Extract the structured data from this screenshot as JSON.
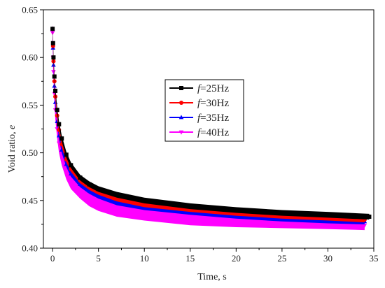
{
  "chart_data": {
    "type": "line",
    "xlabel": "Time, s",
    "ylabel_prefix": "Void ratio, ",
    "ylabel_var": "e",
    "xlim": [
      -1,
      35
    ],
    "ylim": [
      0.4,
      0.65
    ],
    "x_ticks": [
      0,
      5,
      10,
      15,
      20,
      25,
      30,
      35
    ],
    "y_ticks": [
      0.4,
      0.45,
      0.5,
      0.55,
      0.6,
      0.65
    ],
    "x_tick_labels": [
      "0",
      "5",
      "10",
      "15",
      "20",
      "25",
      "30",
      "35"
    ],
    "y_tick_labels": [
      "0.40",
      "0.45",
      "0.50",
      "0.55",
      "0.60",
      "0.65"
    ],
    "grid": false,
    "legend_position": "center",
    "series": [
      {
        "name": "f=25Hz",
        "name_var": "f",
        "name_rest": "=25Hz",
        "color": "#000000",
        "marker": "square",
        "x": [
          0,
          0.05,
          0.1,
          0.2,
          0.3,
          0.5,
          0.7,
          1.0,
          1.5,
          2.0,
          3.0,
          4.0,
          5.0,
          7.0,
          10.0,
          15.0,
          20.0,
          25.0,
          30.0,
          34.5
        ],
        "y": [
          0.63,
          0.615,
          0.6,
          0.58,
          0.565,
          0.545,
          0.53,
          0.515,
          0.498,
          0.487,
          0.474,
          0.467,
          0.462,
          0.456,
          0.45,
          0.444,
          0.44,
          0.437,
          0.435,
          0.433
        ],
        "band": [
          0.003,
          0.003,
          0.003,
          0.003,
          0.003,
          0.003,
          0.003,
          0.003,
          0.003,
          0.003,
          0.003,
          0.003,
          0.003,
          0.003,
          0.003,
          0.003,
          0.003,
          0.003,
          0.003,
          0.003
        ]
      },
      {
        "name": "f=30Hz",
        "name_var": "f",
        "name_rest": "=30Hz",
        "color": "#ff0000",
        "marker": "circle",
        "x": [
          0,
          0.05,
          0.1,
          0.2,
          0.3,
          0.5,
          0.7,
          1.0,
          1.5,
          2.0,
          3.0,
          4.0,
          5.0,
          7.0,
          10.0,
          15.0,
          20.0,
          25.0,
          30.0,
          34.0
        ],
        "y": [
          0.63,
          0.612,
          0.596,
          0.575,
          0.559,
          0.539,
          0.524,
          0.509,
          0.493,
          0.483,
          0.471,
          0.464,
          0.459,
          0.452,
          0.446,
          0.441,
          0.437,
          0.434,
          0.432,
          0.43
        ],
        "band": [
          0.003,
          0.003,
          0.003,
          0.003,
          0.003,
          0.003,
          0.003,
          0.003,
          0.003,
          0.003,
          0.003,
          0.003,
          0.003,
          0.003,
          0.003,
          0.003,
          0.003,
          0.003,
          0.003,
          0.003
        ]
      },
      {
        "name": "f=35Hz",
        "name_var": "f",
        "name_rest": "=35Hz",
        "color": "#0000ff",
        "marker": "triangle-up",
        "x": [
          0,
          0.05,
          0.1,
          0.2,
          0.3,
          0.5,
          0.7,
          1.0,
          1.5,
          2.0,
          3.0,
          4.0,
          5.0,
          7.0,
          10.0,
          15.0,
          20.0,
          25.0,
          30.0,
          34.0
        ],
        "y": [
          0.63,
          0.61,
          0.592,
          0.57,
          0.553,
          0.533,
          0.518,
          0.503,
          0.488,
          0.478,
          0.467,
          0.46,
          0.455,
          0.448,
          0.443,
          0.438,
          0.434,
          0.431,
          0.429,
          0.428
        ],
        "band": [
          0.003,
          0.003,
          0.003,
          0.003,
          0.003,
          0.003,
          0.003,
          0.003,
          0.003,
          0.003,
          0.003,
          0.003,
          0.003,
          0.003,
          0.003,
          0.003,
          0.003,
          0.003,
          0.003,
          0.003
        ]
      },
      {
        "name": "f=40Hz",
        "name_var": "f",
        "name_rest": "=40Hz",
        "color": "#ff00ff",
        "marker": "triangle-down",
        "x": [
          0,
          0.05,
          0.1,
          0.2,
          0.3,
          0.5,
          0.7,
          1.0,
          1.5,
          2.0,
          3.0,
          4.0,
          5.0,
          7.0,
          10.0,
          15.0,
          20.0,
          25.0,
          30.0,
          34.0
        ],
        "y": [
          0.626,
          0.6,
          0.585,
          0.562,
          0.545,
          0.525,
          0.51,
          0.496,
          0.481,
          0.471,
          0.46,
          0.452,
          0.447,
          0.441,
          0.436,
          0.431,
          0.428,
          0.426,
          0.425,
          0.424
        ],
        "band": [
          0.01,
          0.01,
          0.01,
          0.01,
          0.01,
          0.01,
          0.01,
          0.009,
          0.009,
          0.009,
          0.008,
          0.008,
          0.008,
          0.008,
          0.007,
          0.007,
          0.006,
          0.005,
          0.005,
          0.005
        ]
      }
    ]
  }
}
